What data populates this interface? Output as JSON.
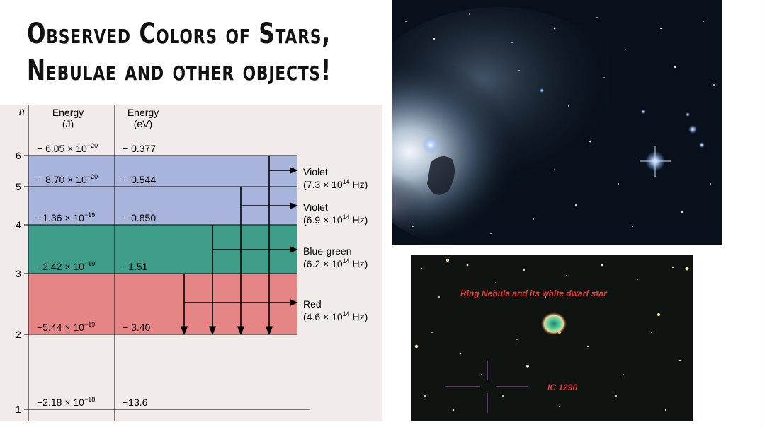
{
  "slide": {
    "title_line1": "Observed Colors of Stars,",
    "title_line2": "Nebulae and other objects!"
  },
  "diagram": {
    "header": {
      "n": "n",
      "energy_j": "Energy",
      "energy_j_unit": "(J)",
      "energy_ev": "Energy",
      "energy_ev_unit": "(eV)"
    },
    "levels": [
      {
        "n": "6",
        "mantissa": "− 6.05 × 10",
        "exp": "−20",
        "ev": "− 0.377"
      },
      {
        "n": "5",
        "mantissa": "− 8.70 × 10",
        "exp": "−20",
        "ev": "− 0.544"
      },
      {
        "n": "4",
        "mantissa": "−1.36 × 10",
        "exp": "−19",
        "ev": "− 0.850"
      },
      {
        "n": "3",
        "mantissa": "−2.42 × 10",
        "exp": "−19",
        "ev": "−1.51"
      },
      {
        "n": "2",
        "mantissa": "−5.44 × 10",
        "exp": "−19",
        "ev": "− 3.40"
      },
      {
        "n": "1",
        "mantissa": "−2.18 × 10",
        "exp": "−18",
        "ev": "−13.6"
      }
    ],
    "lines": [
      {
        "color": "Violet",
        "freq_pre": "(7.3 × 10",
        "freq_exp": "14",
        "freq_post": " Hz)"
      },
      {
        "color": "Violet",
        "freq_pre": "(6.9 × 10",
        "freq_exp": "14",
        "freq_post": " Hz)"
      },
      {
        "color": "Blue-green",
        "freq_pre": "(6.2 × 10",
        "freq_exp": "14",
        "freq_post": " Hz)"
      },
      {
        "color": "Red",
        "freq_pre": "(4.6 × 10",
        "freq_exp": "14",
        "freq_post": " Hz)"
      }
    ],
    "band_colors": {
      "violet": "#a9b4dc",
      "green": "#3f9e8a",
      "red": "#e68585",
      "background": "#f1ecea"
    }
  },
  "photos": {
    "ring_caption": "Ring Nebula and its white dwarf star",
    "ic_label": "IC 1296"
  }
}
